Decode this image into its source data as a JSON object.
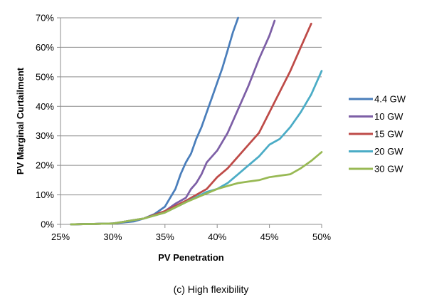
{
  "caption": "(c) High flexibility",
  "chart_data": {
    "type": "line",
    "title": "",
    "xlabel": "PV Penetration",
    "ylabel": "PV Marginal Curtailment",
    "xlim": [
      0.25,
      0.5
    ],
    "ylim": [
      0,
      0.7
    ],
    "xticks": [
      0.25,
      0.3,
      0.35,
      0.4,
      0.45,
      0.5
    ],
    "xtick_labels": [
      "25%",
      "30%",
      "35%",
      "40%",
      "45%",
      "50%"
    ],
    "yticks": [
      0,
      0.1,
      0.2,
      0.3,
      0.4,
      0.5,
      0.6,
      0.7
    ],
    "ytick_labels": [
      "0%",
      "10%",
      "20%",
      "30%",
      "40%",
      "50%",
      "60%",
      "70%"
    ],
    "grid": "horizontal",
    "legend_position": "right",
    "series": [
      {
        "name": "4.4 GW",
        "color": "#4a7ebb",
        "x": [
          0.26,
          0.3,
          0.32,
          0.33,
          0.34,
          0.35,
          0.355,
          0.36,
          0.365,
          0.37,
          0.375,
          0.38,
          0.385,
          0.39,
          0.395,
          0.4,
          0.405,
          0.41,
          0.415,
          0.42
        ],
        "y": [
          0.0,
          0.003,
          0.01,
          0.02,
          0.035,
          0.06,
          0.09,
          0.12,
          0.17,
          0.21,
          0.24,
          0.29,
          0.33,
          0.38,
          0.43,
          0.48,
          0.53,
          0.59,
          0.65,
          0.7
        ]
      },
      {
        "name": "10 GW",
        "color": "#7d5fa6",
        "x": [
          0.26,
          0.3,
          0.33,
          0.35,
          0.36,
          0.37,
          0.375,
          0.38,
          0.385,
          0.39,
          0.4,
          0.41,
          0.42,
          0.43,
          0.44,
          0.45,
          0.455
        ],
        "y": [
          0.0,
          0.003,
          0.02,
          0.045,
          0.07,
          0.09,
          0.12,
          0.14,
          0.17,
          0.21,
          0.25,
          0.31,
          0.39,
          0.47,
          0.56,
          0.64,
          0.69
        ]
      },
      {
        "name": "15 GW",
        "color": "#be4b48",
        "x": [
          0.26,
          0.3,
          0.33,
          0.35,
          0.37,
          0.38,
          0.39,
          0.4,
          0.41,
          0.42,
          0.43,
          0.44,
          0.45,
          0.46,
          0.47,
          0.48,
          0.49
        ],
        "y": [
          0.0,
          0.003,
          0.02,
          0.045,
          0.08,
          0.1,
          0.12,
          0.16,
          0.19,
          0.23,
          0.27,
          0.31,
          0.38,
          0.45,
          0.52,
          0.6,
          0.68
        ]
      },
      {
        "name": "20 GW",
        "color": "#4bacc6",
        "x": [
          0.26,
          0.3,
          0.33,
          0.35,
          0.37,
          0.39,
          0.4,
          0.41,
          0.42,
          0.43,
          0.44,
          0.45,
          0.46,
          0.47,
          0.48,
          0.49,
          0.5
        ],
        "y": [
          0.0,
          0.003,
          0.02,
          0.04,
          0.075,
          0.11,
          0.12,
          0.14,
          0.17,
          0.2,
          0.23,
          0.27,
          0.29,
          0.33,
          0.38,
          0.44,
          0.52
        ]
      },
      {
        "name": "30 GW",
        "color": "#98b954",
        "x": [
          0.26,
          0.3,
          0.33,
          0.35,
          0.37,
          0.39,
          0.4,
          0.41,
          0.42,
          0.43,
          0.44,
          0.45,
          0.46,
          0.47,
          0.48,
          0.49,
          0.5
        ],
        "y": [
          0.0,
          0.003,
          0.02,
          0.04,
          0.075,
          0.105,
          0.12,
          0.13,
          0.14,
          0.145,
          0.15,
          0.16,
          0.165,
          0.17,
          0.19,
          0.215,
          0.245
        ]
      }
    ]
  }
}
